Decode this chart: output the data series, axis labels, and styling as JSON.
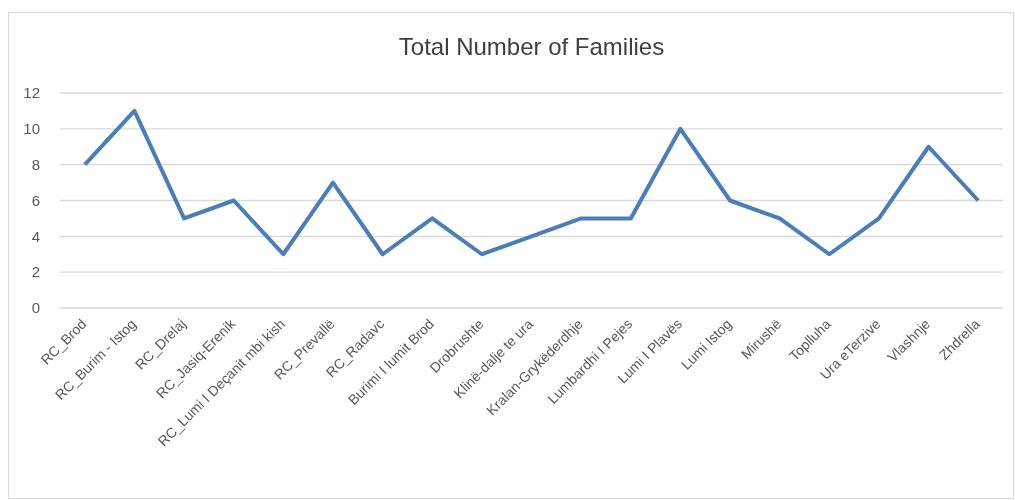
{
  "chart_data": {
    "type": "line",
    "title": "Total Number of Families",
    "categories": [
      "RC_Brod",
      "RC_Burim - Istog",
      "RC_Drelaj",
      "RC_Jasiq-Erenik",
      "RC_Lumi I Deçanit mbi kish",
      "RC_Prevallë",
      "RC_Radavc",
      "Burimi I lumit Brod",
      "Drobrushte",
      "Klinë-dalje te ura",
      "Kralan-Grykëderdhje",
      "Lumbardhi I Pejes",
      "Lumi I Plavës",
      "Lumi Istog",
      "Mirushë",
      "Toplluha",
      "Ura eTerzive",
      "Vlashnje",
      "Zhdrella"
    ],
    "series": [
      {
        "color": "#4a7ebb",
        "values": [
          8,
          11,
          5,
          6,
          3,
          7,
          3,
          5,
          3,
          4,
          5,
          5,
          10,
          6,
          5,
          3,
          5,
          9,
          6
        ]
      }
    ],
    "ylim": [
      0,
      12
    ],
    "yticks": [
      0,
      2,
      4,
      6,
      8,
      10,
      12
    ],
    "grid": "y",
    "marker": "none",
    "line_style": "solid"
  }
}
